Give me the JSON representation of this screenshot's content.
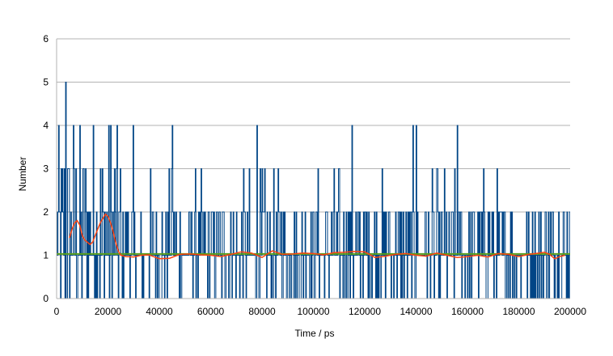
{
  "chart_data": {
    "type": "line",
    "title": "",
    "xlabel": "Time / ps",
    "ylabel": "Number",
    "xlim": [
      0,
      200000
    ],
    "ylim": [
      0,
      6
    ],
    "grid": true,
    "legend": "none",
    "x_ticks": [
      "0",
      "20000",
      "40000",
      "60000",
      "80000",
      "100000",
      "120000",
      "140000",
      "160000",
      "180000",
      "200000"
    ],
    "y_ticks": [
      "0",
      "1",
      "2",
      "3",
      "4",
      "5",
      "6"
    ],
    "colors": {
      "raw": "#004586",
      "running_average": "#ff420e",
      "mean": "#579d1c",
      "grid": "#b3b3b3"
    },
    "series": [
      {
        "role": "raw",
        "step": 250,
        "note_x_range": [
          0,
          200000
        ],
        "values_by_segment": [
          {
            "x_start": 0,
            "x_end": 25000,
            "level_counts": {
              "0": 0.25,
              "1": 0.3,
              "2": 0.22,
              "3": 0.13,
              "4": 0.1
            },
            "max_value": 5,
            "max_at": 3500
          },
          {
            "x_start": 25000,
            "x_end": 200000,
            "level_counts": {
              "0": 0.22,
              "1": 0.5,
              "2": 0.24,
              "3": 0.035,
              "4": 0.005
            }
          }
        ],
        "spikes_to_4": [
          45000,
          78000,
          156000,
          140000,
          115000
        ]
      },
      {
        "role": "running_average",
        "x": [
          5000,
          6000,
          7000,
          8000,
          9000,
          10000,
          11000,
          12000,
          13000,
          14000,
          15000,
          16000,
          17000,
          18000,
          19000,
          20000,
          21000,
          22000,
          23000,
          24000,
          25000,
          27000,
          30000,
          33000,
          36000,
          40000,
          44000,
          48000,
          52000,
          56000,
          60000,
          64000,
          68000,
          72000,
          76000,
          80000,
          84000,
          88000,
          92000,
          96000,
          100000,
          104000,
          108000,
          112000,
          116000,
          120000,
          124000,
          128000,
          132000,
          136000,
          140000,
          144000,
          148000,
          152000,
          156000,
          160000,
          164000,
          168000,
          172000,
          176000,
          180000,
          184000,
          188000,
          190000,
          192000,
          194000,
          196000,
          198000
        ],
        "values": [
          1.4,
          1.6,
          1.75,
          1.8,
          1.7,
          1.45,
          1.35,
          1.3,
          1.25,
          1.3,
          1.45,
          1.6,
          1.75,
          1.85,
          1.95,
          1.9,
          1.75,
          1.55,
          1.3,
          1.1,
          1.0,
          0.97,
          0.96,
          1.0,
          1.01,
          0.92,
          0.93,
          1.02,
          1.03,
          1.01,
          1.0,
          0.97,
          1.02,
          1.08,
          1.05,
          0.95,
          1.1,
          1.02,
          1.03,
          1.05,
          1.04,
          1.01,
          1.06,
          1.07,
          1.09,
          1.08,
          0.95,
          0.98,
          1.02,
          1.04,
          1.0,
          0.98,
          1.05,
          1.0,
          0.95,
          0.97,
          1.0,
          0.96,
          1.04,
          1.02,
          0.97,
          1.02,
          1.05,
          1.07,
          1.02,
          0.92,
          0.97,
          1.0
        ]
      },
      {
        "role": "mean",
        "x": [
          0,
          200000
        ],
        "values": [
          1.03,
          1.03
        ]
      }
    ]
  }
}
